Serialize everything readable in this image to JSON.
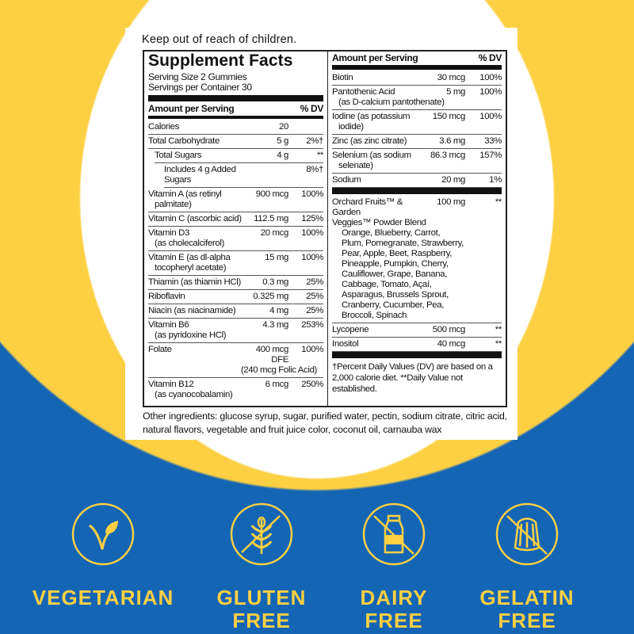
{
  "warning": "Keep out of reach of children.",
  "facts": {
    "title": "Supplement Facts",
    "serving_size": "Serving Size 2 Gummies",
    "servings_per_container": "Servings per Container 30",
    "amount_header": "Amount per Serving",
    "dv_header": "% DV",
    "left_rows": [
      {
        "name": "Calories",
        "amount": "20",
        "dv": ""
      },
      {
        "name": "Total Carbohydrate",
        "amount": "5 g",
        "dv": "2%†"
      },
      {
        "name": "Total Sugars",
        "amount": "4 g",
        "dv": "**",
        "indent": 1
      },
      {
        "name": "Includes 4 g Added Sugars",
        "amount": "",
        "dv": "8%†",
        "indent": 2
      },
      {
        "name": "Vitamin A (as retinyl",
        "sub": "palmitate)",
        "amount": "900 mcg",
        "dv": "100%"
      },
      {
        "name": "Vitamin C (ascorbic acid)",
        "amount": "112.5 mg",
        "dv": "125%"
      },
      {
        "name": "Vitamin D3",
        "sub": "(as cholecalciferol)",
        "amount": "20 mcg",
        "dv": "100%"
      },
      {
        "name": "Vitamin E (as dl-alpha",
        "sub": "tocopheryl acetate)",
        "amount": "15 mg",
        "dv": "100%"
      },
      {
        "name": "Thiamin (as thiamin HCl)",
        "amount": "0.3 mg",
        "dv": "25%"
      },
      {
        "name": "Riboflavin",
        "amount": "0.325 mg",
        "dv": "25%"
      },
      {
        "name": "Niacin (as niacinamide)",
        "amount": "4 mg",
        "dv": "25%"
      },
      {
        "name": "Vitamin B6",
        "sub": "(as pyridoxine HCl)",
        "amount": "4.3 mg",
        "dv": "253%"
      },
      {
        "name": "Folate",
        "amount": "400 mcg DFE",
        "dv": "100%",
        "sub": "(240 mcg Folic Acid)"
      },
      {
        "name": "Vitamin B12",
        "sub": "(as cyanocobalamin)",
        "amount": "6 mcg",
        "dv": "250%"
      }
    ],
    "right_rows": [
      {
        "name": "Biotin",
        "amount": "30 mcg",
        "dv": "100%"
      },
      {
        "name": "Pantothenic Acid",
        "sub": "(as D-calcium pantothenate)",
        "amount": "5 mg",
        "dv": "100%"
      },
      {
        "name": "Iodine (as potassium",
        "sub": "iodide)",
        "amount": "150 mcg",
        "dv": "100%"
      },
      {
        "name": "Zinc (as zinc citrate)",
        "amount": "3.6 mg",
        "dv": "33%"
      },
      {
        "name": "Selenium (as sodium",
        "sub": "selenate)",
        "amount": "86.3 mcg",
        "dv": "157%"
      },
      {
        "name": "Sodium",
        "amount": "20 mg",
        "dv": "1%"
      }
    ],
    "blend": {
      "name": "Orchard Fruits™ & Garden",
      "name2": "Veggies™ Powder Blend",
      "amount": "100 mg",
      "dv": "**",
      "ingredients": [
        "Orange, Blueberry, Carrot,",
        "Plum, Pomegranate, Strawberry,",
        "Pear, Apple, Beet, Raspberry,",
        "Pineapple, Pumpkin, Cherry,",
        "Cauliflower, Grape, Banana,",
        "Cabbage, Tomato, Açaí,",
        "Asparagus, Brussels Sprout,",
        "Cranberry, Cucumber, Pea,",
        "Broccoli, Spinach"
      ]
    },
    "right_rows2": [
      {
        "name": "Lycopene",
        "amount": "500 mcg",
        "dv": "**"
      },
      {
        "name": "Inositol",
        "amount": "40 mcg",
        "dv": "**"
      }
    ],
    "footnote": "†Percent Daily Values (DV) are based on a 2,000 calorie diet. **Daily Value not established."
  },
  "other_ingredients": "Other ingredients: glucose syrup, sugar, purified water, pectin, sodium citrate, citric acid, natural flavors, vegetable and fruit juice color, coconut oil, carnauba wax",
  "badges": [
    {
      "icon": "vegetarian-leaf-icon",
      "line1": "VEGETARIAN",
      "line2": ""
    },
    {
      "icon": "gluten-free-wheat-icon",
      "line1": "GLUTEN",
      "line2": "FREE"
    },
    {
      "icon": "dairy-free-bottle-icon",
      "line1": "DAIRY",
      "line2": "FREE"
    },
    {
      "icon": "gelatin-free-jelly-icon",
      "line1": "GELATIN",
      "line2": "FREE"
    }
  ],
  "colors": {
    "yellow": "#fdd043",
    "blue": "#1565b5"
  }
}
